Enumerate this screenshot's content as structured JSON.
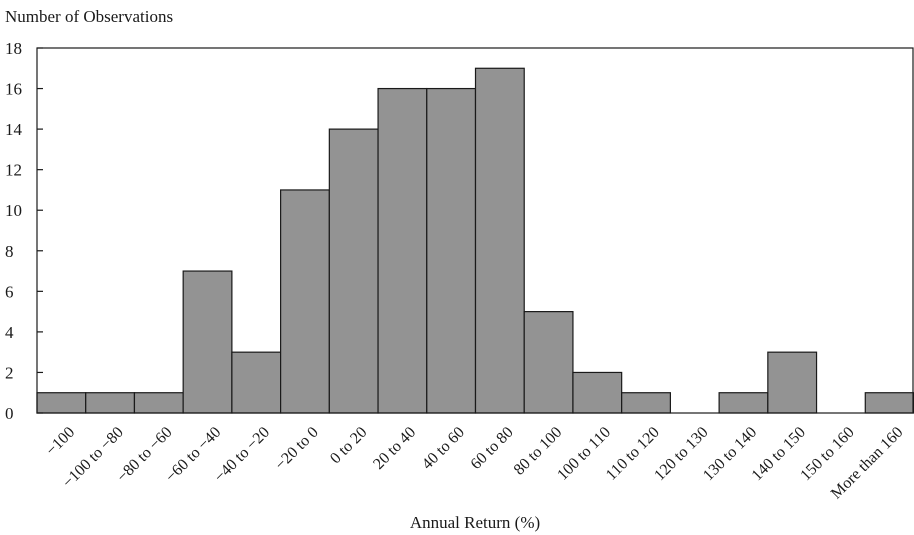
{
  "chart_data": {
    "type": "bar",
    "title": "",
    "ylabel": "Number of Observations",
    "xlabel": "Annual Return (%)",
    "ylim": [
      0,
      18
    ],
    "yticks": [
      0,
      2,
      4,
      6,
      8,
      10,
      12,
      14,
      16,
      18
    ],
    "grid": false,
    "legend": "none",
    "bar_color": "#939393",
    "edge_color": "#1a1a1a",
    "categories": [
      "−100",
      "−100 to −80",
      "−80 to −60",
      "−60 to −40",
      "−40 to −20",
      "−20 to 0",
      "0 to 20",
      "20 to 40",
      "40 to 60",
      "60 to 80",
      "80 to 100",
      "100 to 110",
      "110 to 120",
      "120 to 130",
      "130 to 140",
      "140 to 150",
      "150 to 160",
      "More than 160"
    ],
    "values": [
      1,
      1,
      1,
      7,
      3,
      11,
      14,
      16,
      16,
      17,
      5,
      2,
      1,
      0,
      1,
      3,
      0,
      1
    ]
  }
}
